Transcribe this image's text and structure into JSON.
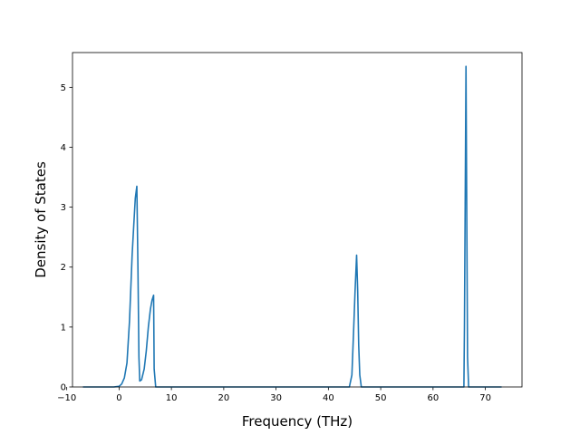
{
  "chart_data": {
    "type": "line",
    "title": "",
    "xlabel": "Frequency (THz)",
    "ylabel": "Density of States",
    "xlim": [
      -8.9,
      77.0
    ],
    "ylim": [
      0,
      5.58
    ],
    "xticks": [
      -10,
      0,
      10,
      20,
      30,
      40,
      50,
      60,
      70
    ],
    "xtick_labels": [
      "−10",
      "0",
      "10",
      "20",
      "30",
      "40",
      "50",
      "60",
      "70"
    ],
    "yticks": [
      0,
      1,
      2,
      3,
      4,
      5
    ],
    "ytick_labels": [
      "0",
      "1",
      "2",
      "3",
      "4",
      "5"
    ],
    "grid": false,
    "color": "#1f77b4",
    "series": [
      {
        "x": [
          -6.9,
          -2.0,
          -1.0,
          0.0,
          0.5,
          1.0,
          1.5,
          2.0,
          2.5,
          2.8,
          3.1,
          3.4,
          3.6,
          3.8,
          3.95,
          4.3,
          4.8,
          5.2,
          5.6,
          6.0,
          6.3,
          6.6,
          6.7,
          7.0,
          7.5,
          10,
          20,
          30,
          40,
          44.0,
          44.5,
          44.8,
          45.1,
          45.4,
          45.6,
          45.8,
          46.0,
          46.3,
          46.6,
          50,
          60,
          65.5,
          65.9,
          66.0,
          66.3,
          66.6,
          66.8,
          70,
          73.1
        ],
        "y": [
          0,
          0,
          0,
          0.01,
          0.05,
          0.15,
          0.4,
          1.1,
          2.2,
          2.7,
          3.15,
          3.35,
          2.0,
          0.5,
          0.1,
          0.12,
          0.3,
          0.6,
          1.0,
          1.3,
          1.45,
          1.53,
          0.3,
          0,
          0,
          0,
          0,
          0,
          0,
          0,
          0.2,
          0.9,
          1.6,
          2.2,
          1.6,
          0.7,
          0.2,
          0,
          0,
          0,
          0,
          0,
          0,
          1.0,
          5.35,
          0.5,
          0,
          0,
          0
        ]
      }
    ]
  }
}
